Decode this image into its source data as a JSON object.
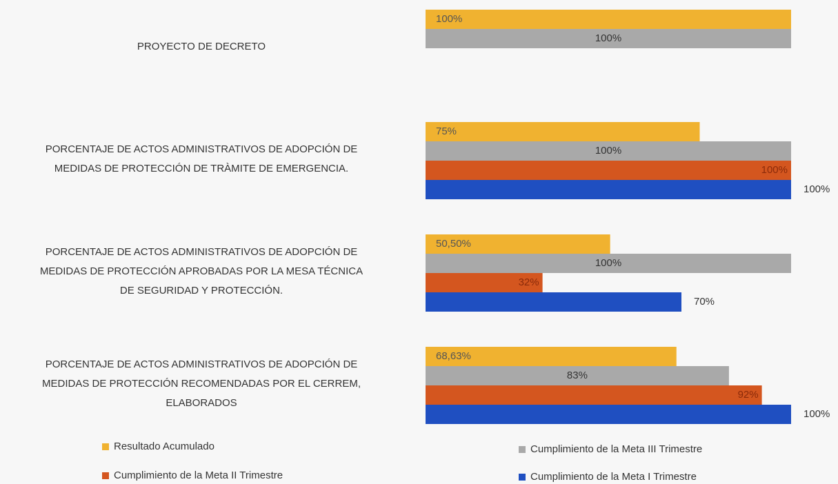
{
  "chart_data": {
    "type": "bar",
    "orientation": "horizontal",
    "categories": [
      "PROYECTO DE DECRETO",
      "PORCENTAJE DE ACTOS ADMINISTRATIVOS DE ADOPCIÓN DE\nMEDIDAS DE PROTECCIÓN DE TRÀMITE DE EMERGENCIA.",
      "PORCENTAJE DE ACTOS ADMINISTRATIVOS DE ADOPCIÓN DE\nMEDIDAS DE PROTECCIÓN APROBADAS POR LA MESA TÉCNICA\nDE SEGURIDAD Y PROTECCIÓN.",
      "PORCENTAJE DE ACTOS ADMINISTRATIVOS DE ADOPCIÓN DE\nMEDIDAS DE PROTECCIÓN  RECOMENDADAS POR EL CERREM,\nELABORADOS"
    ],
    "series": [
      {
        "name": "Resultado Acumulado",
        "color": "#f0b230",
        "values": [
          100,
          75,
          50.5,
          68.63
        ],
        "value_labels": [
          "100%",
          "75%",
          "50,50%",
          "68,63%"
        ]
      },
      {
        "name": "Cumplimiento de la Meta III Trimestre",
        "color": "#a9a9a9",
        "values": [
          100,
          100,
          100,
          83
        ],
        "value_labels": [
          "100%",
          "100%",
          "100%",
          "83%"
        ]
      },
      {
        "name": "Cumplimiento de la Meta II Trimestre",
        "color": "#d4561f",
        "values": [
          null,
          100,
          32,
          92
        ],
        "value_labels": [
          null,
          "100%",
          "32%",
          "92%"
        ]
      },
      {
        "name": "Cumplimiento de la Meta I Trimestre",
        "color": "#1f4fc1",
        "values": [
          null,
          100,
          70,
          100
        ],
        "value_labels": [
          null,
          "100%",
          "70%",
          "100%"
        ]
      }
    ],
    "xlim": [
      0,
      100
    ]
  }
}
